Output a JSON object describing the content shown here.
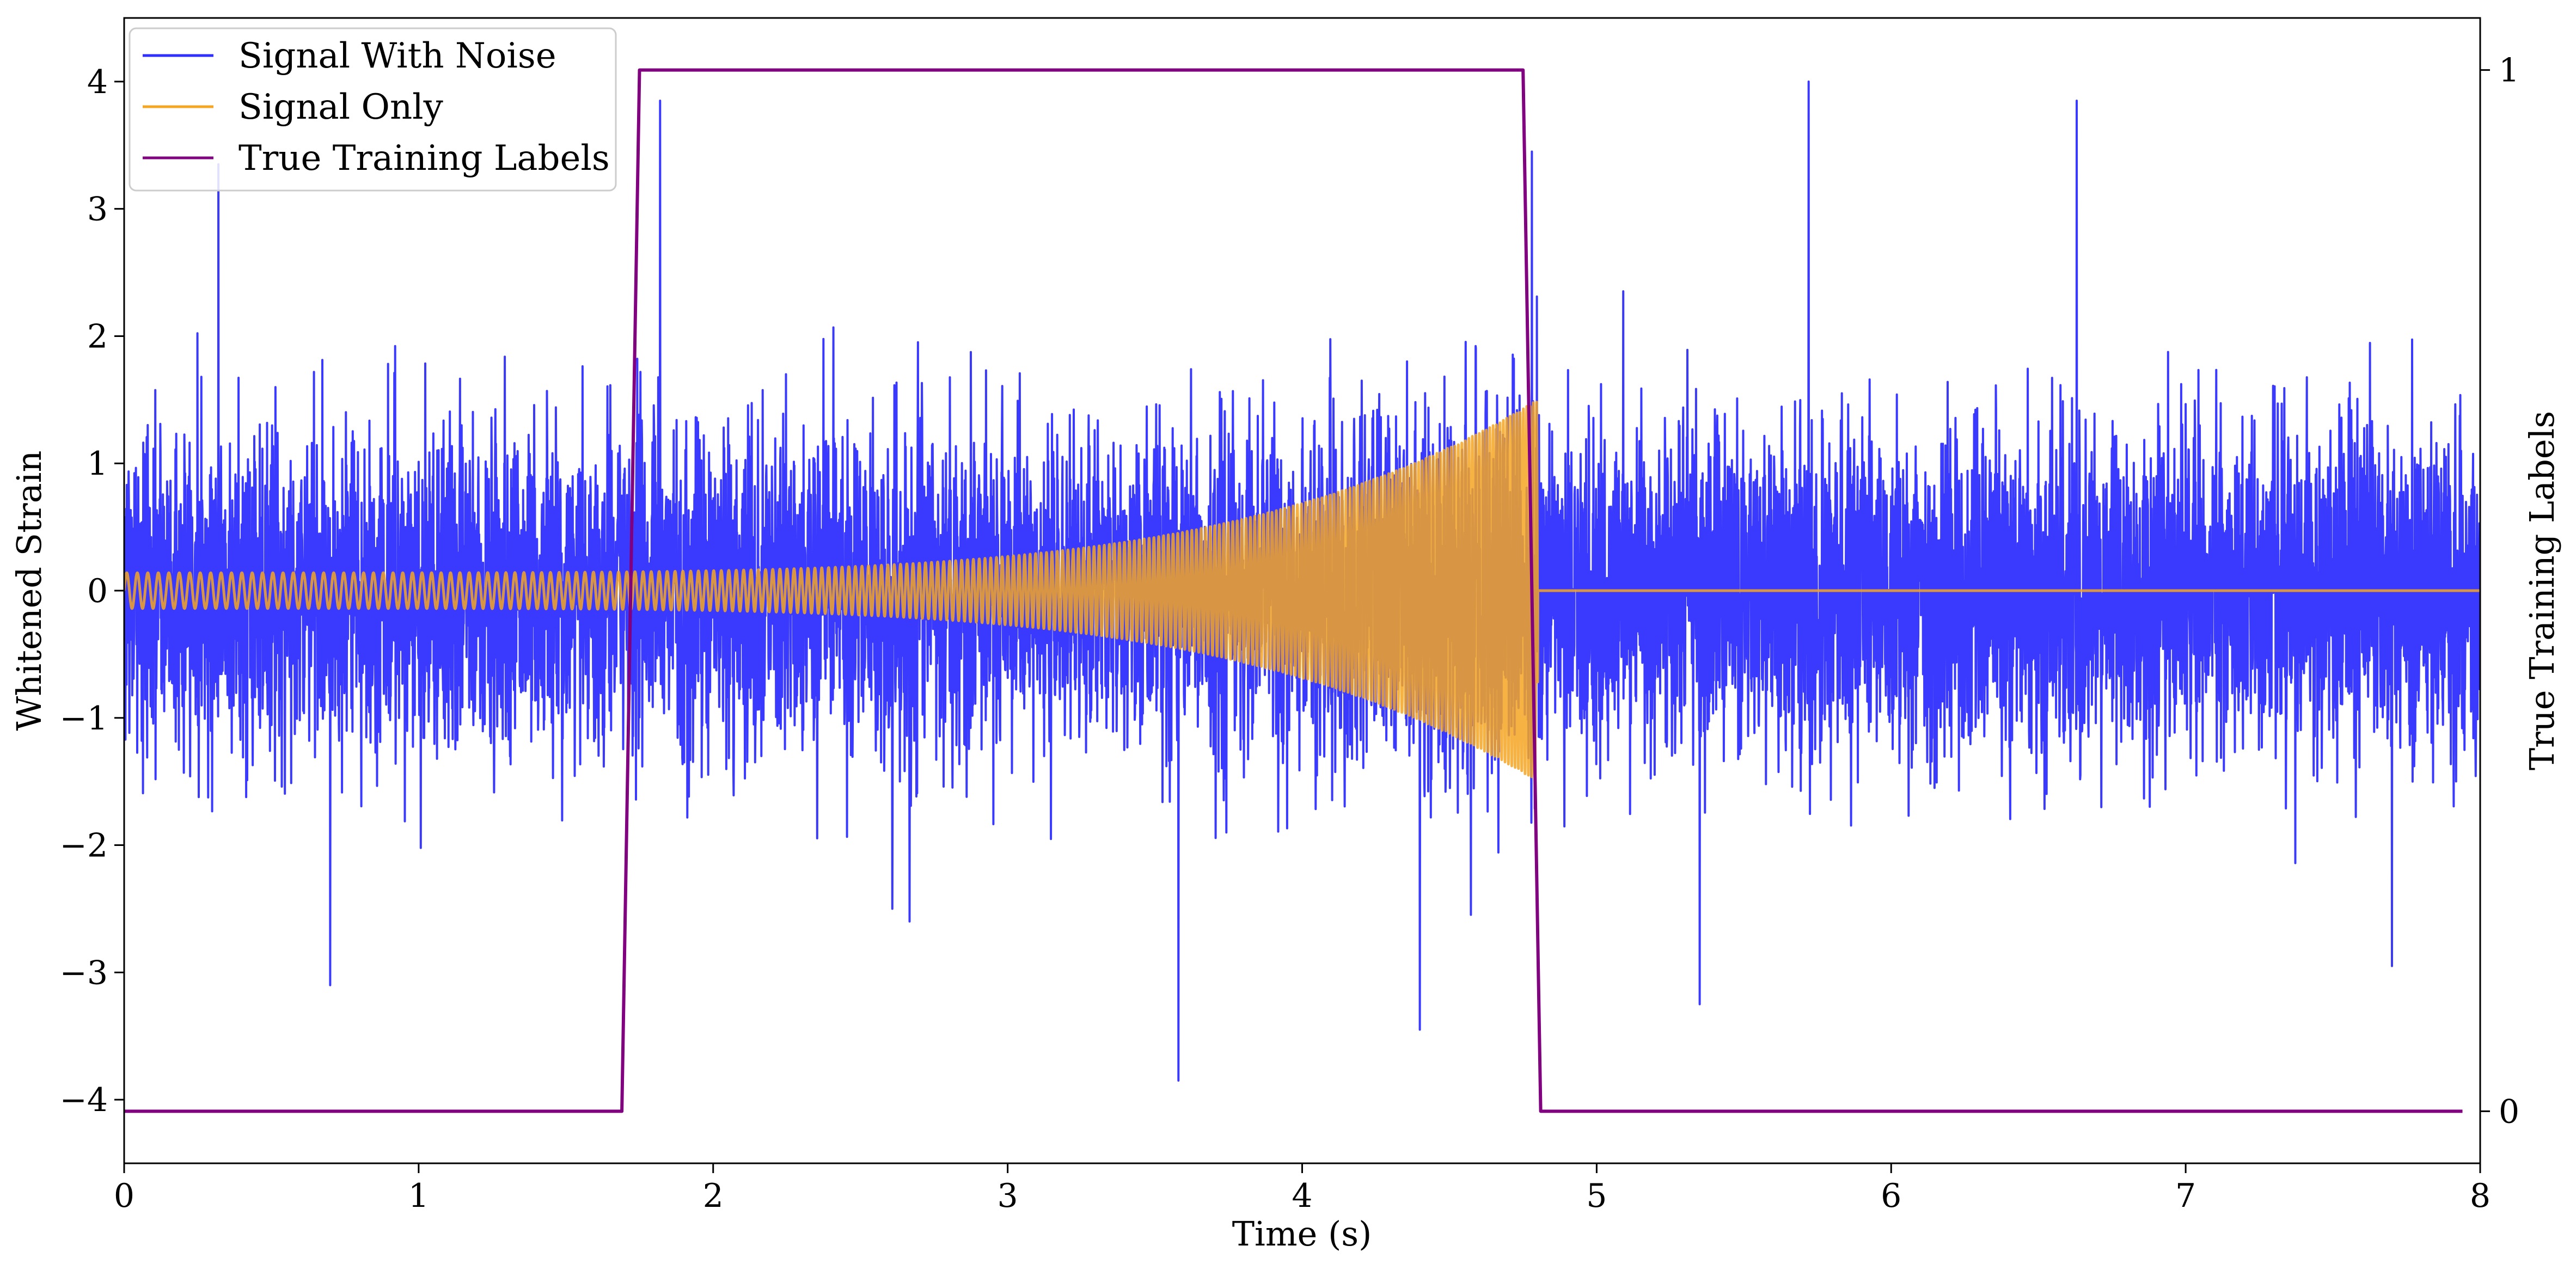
{
  "chart_data": {
    "type": "line",
    "title": "",
    "xlabel": "Time (s)",
    "ylabel": "Whitened Strain",
    "y2label": "True Training Labels",
    "xlim": [
      0,
      8
    ],
    "ylim": [
      -4.5,
      4.5
    ],
    "y2lim": [
      -0.05,
      1.05
    ],
    "x_ticks": [
      0,
      1,
      2,
      3,
      4,
      5,
      6,
      7,
      8
    ],
    "x_tick_labels": [
      "0",
      "1",
      "2",
      "3",
      "4",
      "5",
      "6",
      "7",
      "8"
    ],
    "y_ticks": [
      -4,
      -3,
      -2,
      -1,
      0,
      1,
      2,
      3,
      4
    ],
    "y_tick_labels": [
      "−4",
      "−3",
      "−2",
      "−1",
      "0",
      "1",
      "2",
      "3",
      "4"
    ],
    "y2_ticks": [
      0,
      1
    ],
    "y2_tick_labels": [
      "0",
      "1"
    ],
    "grid": false,
    "legend_position": "top-left",
    "series": [
      {
        "name": "Signal With Noise",
        "color": "#2f2fff",
        "axis": "left",
        "kind": "gaussian-noise-plus-chirp",
        "x_range": [
          0,
          8
        ],
        "noise_std": 0.6,
        "peak_values": [
          {
            "x": 0.32,
            "y": 3.35
          },
          {
            "x": 1.82,
            "y": 3.85
          },
          {
            "x": 5.72,
            "y": 4.0
          },
          {
            "x": 6.63,
            "y": 3.85
          },
          {
            "x": 4.78,
            "y": 3.45
          },
          {
            "x": 3.58,
            "y": -3.85
          },
          {
            "x": 4.4,
            "y": -3.45
          },
          {
            "x": 0.7,
            "y": -3.1
          },
          {
            "x": 5.35,
            "y": -3.25
          },
          {
            "x": 7.7,
            "y": -2.95
          }
        ]
      },
      {
        "name": "Signal Only",
        "color": "#f5a623",
        "axis": "left",
        "kind": "chirp",
        "x_range": [
          0,
          4.8
        ],
        "start_amplitude": 0.14,
        "end_amplitude": 1.5,
        "start_cycles_per_second": 28,
        "end_cycles_per_second": 90,
        "after_merger_value": 0
      },
      {
        "name": "True Training Labels",
        "color": "#800080",
        "axis": "right",
        "x": [
          0,
          1.69,
          1.75,
          4.75,
          4.81,
          7.94
        ],
        "y": [
          0,
          0,
          1,
          1,
          0,
          0
        ]
      }
    ]
  }
}
